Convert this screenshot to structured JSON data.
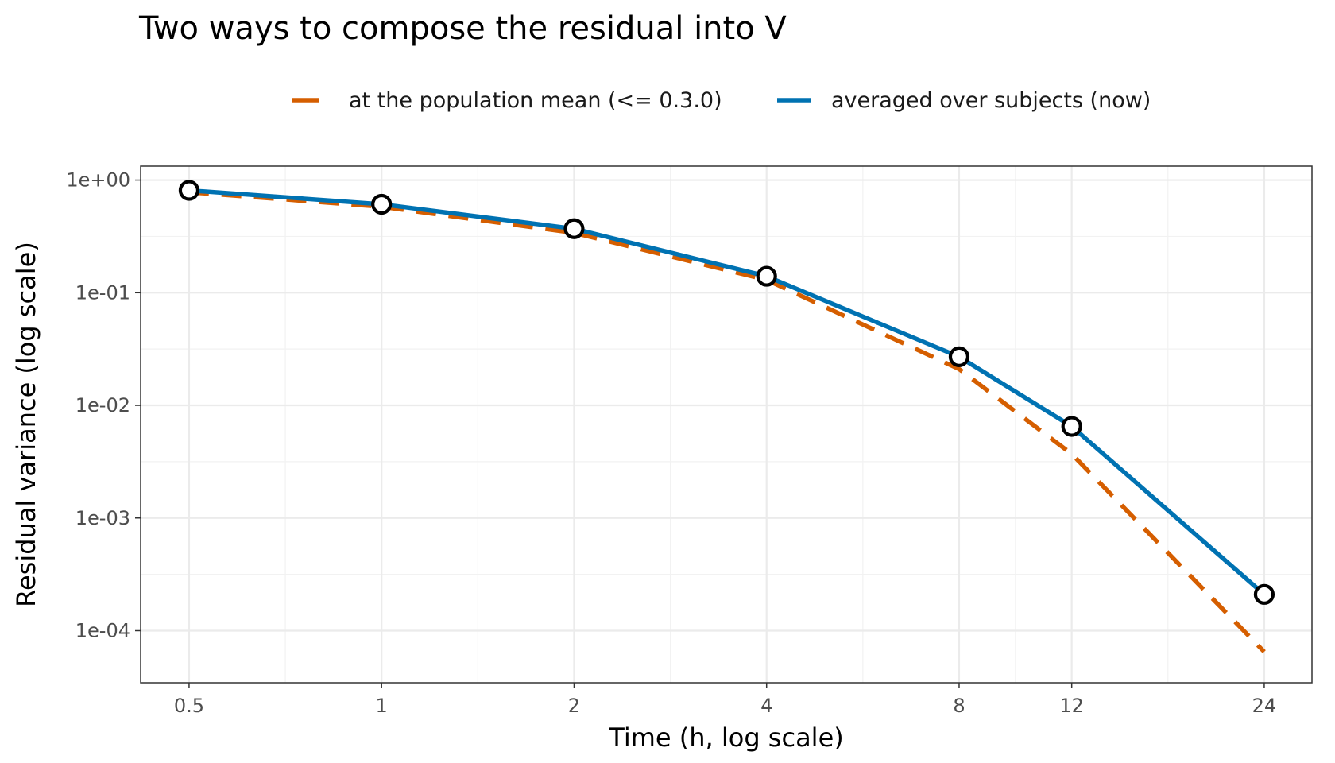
{
  "chart_data": {
    "type": "line",
    "title": "Two ways to compose the residual into V",
    "xlabel": "Time (h, log scale)",
    "ylabel": "Residual variance (log scale)",
    "x_scale": "log",
    "y_scale": "log",
    "x_ticks": [
      0.5,
      1,
      2,
      4,
      8,
      12,
      24
    ],
    "x_tick_labels": [
      "0.5",
      "1",
      "2",
      "4",
      "8",
      "12",
      "24"
    ],
    "y_ticks": [
      1,
      0.1,
      0.01,
      0.001,
      0.0001
    ],
    "y_tick_labels": [
      "1e+00",
      "1e-01",
      "1e-02",
      "1e-03",
      "1e-04"
    ],
    "xlim": [
      0.42,
      28.5
    ],
    "ylim": [
      3.45e-05,
      1.33
    ],
    "grid": true,
    "legend_position": "top",
    "x": [
      0.5,
      1,
      2,
      4,
      8,
      12,
      24
    ],
    "series": [
      {
        "name": "at the population mean (<= 0.3.0)",
        "color": "#D55E00",
        "line_style": "dashed",
        "values": [
          0.78,
          0.58,
          0.34,
          0.13,
          0.021,
          0.0037,
          6.5e-05
        ]
      },
      {
        "name": "averaged over subjects (now)",
        "color": "#0072B2",
        "line_style": "solid",
        "values": [
          0.81,
          0.61,
          0.37,
          0.14,
          0.027,
          0.0065,
          0.00021
        ]
      }
    ]
  }
}
